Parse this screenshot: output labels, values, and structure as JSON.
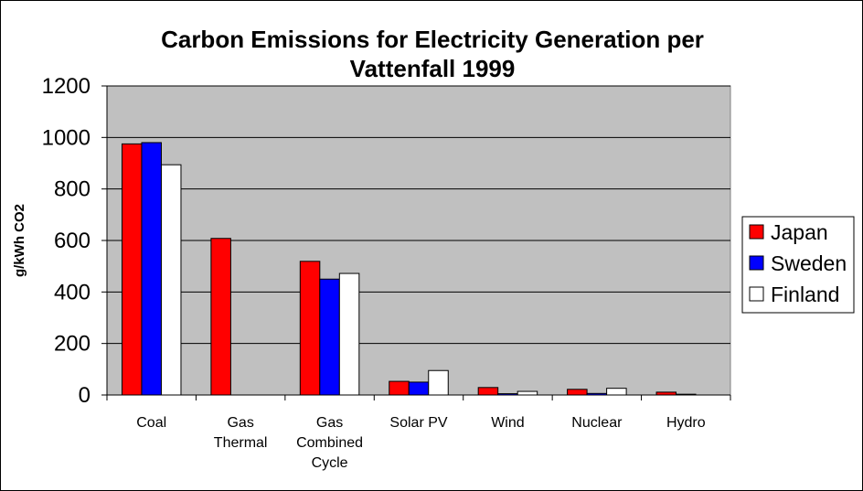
{
  "chart_data": {
    "type": "bar",
    "title": "Carbon Emissions for Electricity Generation per Vattenfall 1999",
    "title_lines": [
      "Carbon Emissions for Electricity Generation per",
      "Vattenfall 1999"
    ],
    "xlabel": "",
    "ylabel": "g/kWh CO2",
    "ylim": [
      0,
      1200
    ],
    "yticks": [
      0,
      200,
      400,
      600,
      800,
      1000,
      1200
    ],
    "grid": true,
    "legend_position": "right",
    "categories": [
      "Coal",
      "Gas Thermal",
      "Gas Combined Cycle",
      "Solar PV",
      "Wind",
      "Nuclear",
      "Hydro"
    ],
    "category_label_lines": [
      [
        "Coal"
      ],
      [
        "Gas",
        "Thermal"
      ],
      [
        "Gas",
        "Combined",
        "Cycle"
      ],
      [
        "Solar PV"
      ],
      [
        "Wind"
      ],
      [
        "Nuclear"
      ],
      [
        "Hydro"
      ]
    ],
    "series": [
      {
        "name": "Japan",
        "color": "#ff0000",
        "values": [
          975,
          608,
          519,
          53,
          29,
          22,
          11
        ]
      },
      {
        "name": "Sweden",
        "color": "#0000ff",
        "values": [
          980,
          0,
          450,
          50,
          5,
          6,
          3
        ]
      },
      {
        "name": "Finland",
        "color": "#ffffff",
        "values": [
          894,
          0,
          472,
          95,
          14,
          26,
          0
        ]
      }
    ],
    "plot_background": "#c0c0c0"
  }
}
